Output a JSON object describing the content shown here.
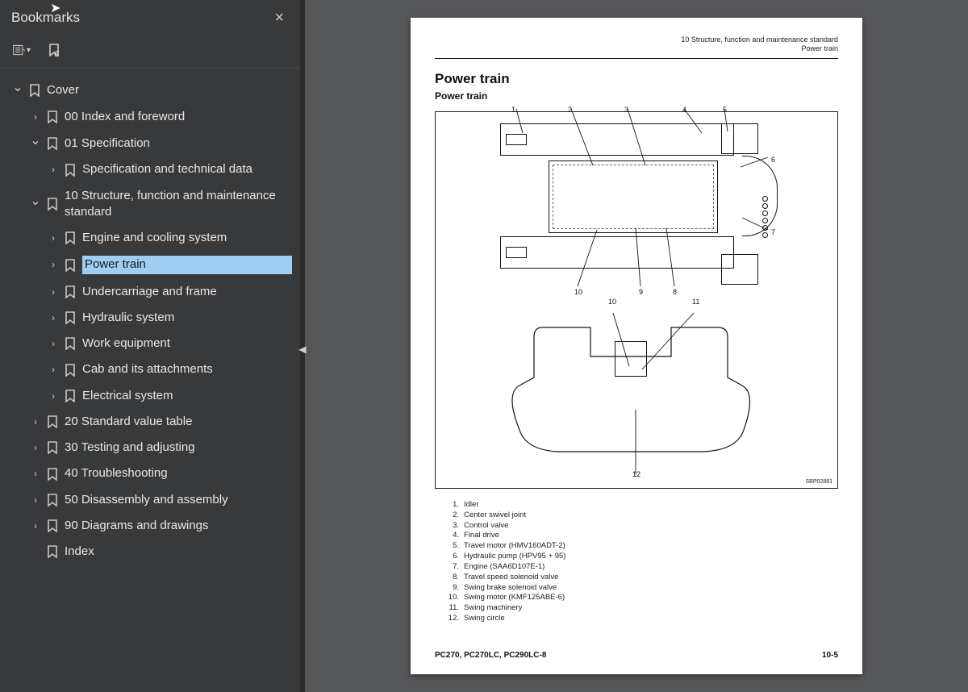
{
  "sidebar": {
    "title": "Bookmarks",
    "close_label": "×",
    "tree": [
      {
        "id": "cover",
        "label": "Cover",
        "depth": 0,
        "chev": "down",
        "selected": false
      },
      {
        "id": "s00",
        "label": "00 Index and foreword",
        "depth": 1,
        "chev": "right",
        "selected": false
      },
      {
        "id": "s01",
        "label": "01 Specification",
        "depth": 1,
        "chev": "down",
        "selected": false
      },
      {
        "id": "spec",
        "label": "Specification and technical data",
        "depth": 2,
        "chev": "right",
        "selected": false
      },
      {
        "id": "s10",
        "label": "10 Structure, function and maintenance standard",
        "depth": 1,
        "chev": "down",
        "selected": false,
        "wrap": true
      },
      {
        "id": "eng",
        "label": "Engine and cooling system",
        "depth": 2,
        "chev": "right",
        "selected": false
      },
      {
        "id": "pt",
        "label": "Power train",
        "depth": 2,
        "chev": "right",
        "selected": true
      },
      {
        "id": "uc",
        "label": "Undercarriage and frame",
        "depth": 2,
        "chev": "right",
        "selected": false
      },
      {
        "id": "hyd",
        "label": "Hydraulic system",
        "depth": 2,
        "chev": "right",
        "selected": false
      },
      {
        "id": "we",
        "label": "Work equipment",
        "depth": 2,
        "chev": "right",
        "selected": false
      },
      {
        "id": "cab",
        "label": "Cab and its attachments",
        "depth": 2,
        "chev": "right",
        "selected": false
      },
      {
        "id": "elec",
        "label": "Electrical system",
        "depth": 2,
        "chev": "right",
        "selected": false
      },
      {
        "id": "s20",
        "label": "20 Standard value table",
        "depth": 1,
        "chev": "right",
        "selected": false
      },
      {
        "id": "s30",
        "label": "30 Testing and adjusting",
        "depth": 1,
        "chev": "right",
        "selected": false
      },
      {
        "id": "s40",
        "label": "40 Troubleshooting",
        "depth": 1,
        "chev": "right",
        "selected": false
      },
      {
        "id": "s50",
        "label": "50 Disassembly and assembly",
        "depth": 1,
        "chev": "right",
        "selected": false
      },
      {
        "id": "s90",
        "label": "90 Diagrams and drawings",
        "depth": 1,
        "chev": "right",
        "selected": false
      },
      {
        "id": "idx",
        "label": "Index",
        "depth": 1,
        "chev": "none",
        "selected": false
      }
    ]
  },
  "page": {
    "header_line1": "10 Structure, function and maintenance standard",
    "header_line2": "Power train",
    "h1": "Power train",
    "h2": "Power train",
    "diagram_ref": "SBP02881",
    "callouts_top": [
      "1",
      "2",
      "3",
      "4",
      "5",
      "6",
      "7",
      "8",
      "9",
      "10"
    ],
    "callouts_bottom": [
      "10",
      "11",
      "12"
    ],
    "legend": [
      {
        "n": "1.",
        "t": "Idler"
      },
      {
        "n": "2.",
        "t": "Center swivel joint"
      },
      {
        "n": "3.",
        "t": "Control valve"
      },
      {
        "n": "4.",
        "t": "Final drive"
      },
      {
        "n": "5.",
        "t": "Travel motor (HMV160ADT-2)"
      },
      {
        "n": "6.",
        "t": "Hydraulic pump (HPV95 + 95)"
      },
      {
        "n": "7.",
        "t": "Engine (SAA6D107E-1)"
      },
      {
        "n": "8.",
        "t": "Travel speed solenoid valve"
      },
      {
        "n": "9.",
        "t": "Swing brake solenoid valve"
      },
      {
        "n": "10.",
        "t": "Swing motor (KMF125ABE-6)"
      },
      {
        "n": "11.",
        "t": "Swing machinery"
      },
      {
        "n": "12.",
        "t": "Swing circle"
      }
    ],
    "footer_left": "PC270, PC270LC, PC290LC-8",
    "footer_right": "10-5"
  }
}
